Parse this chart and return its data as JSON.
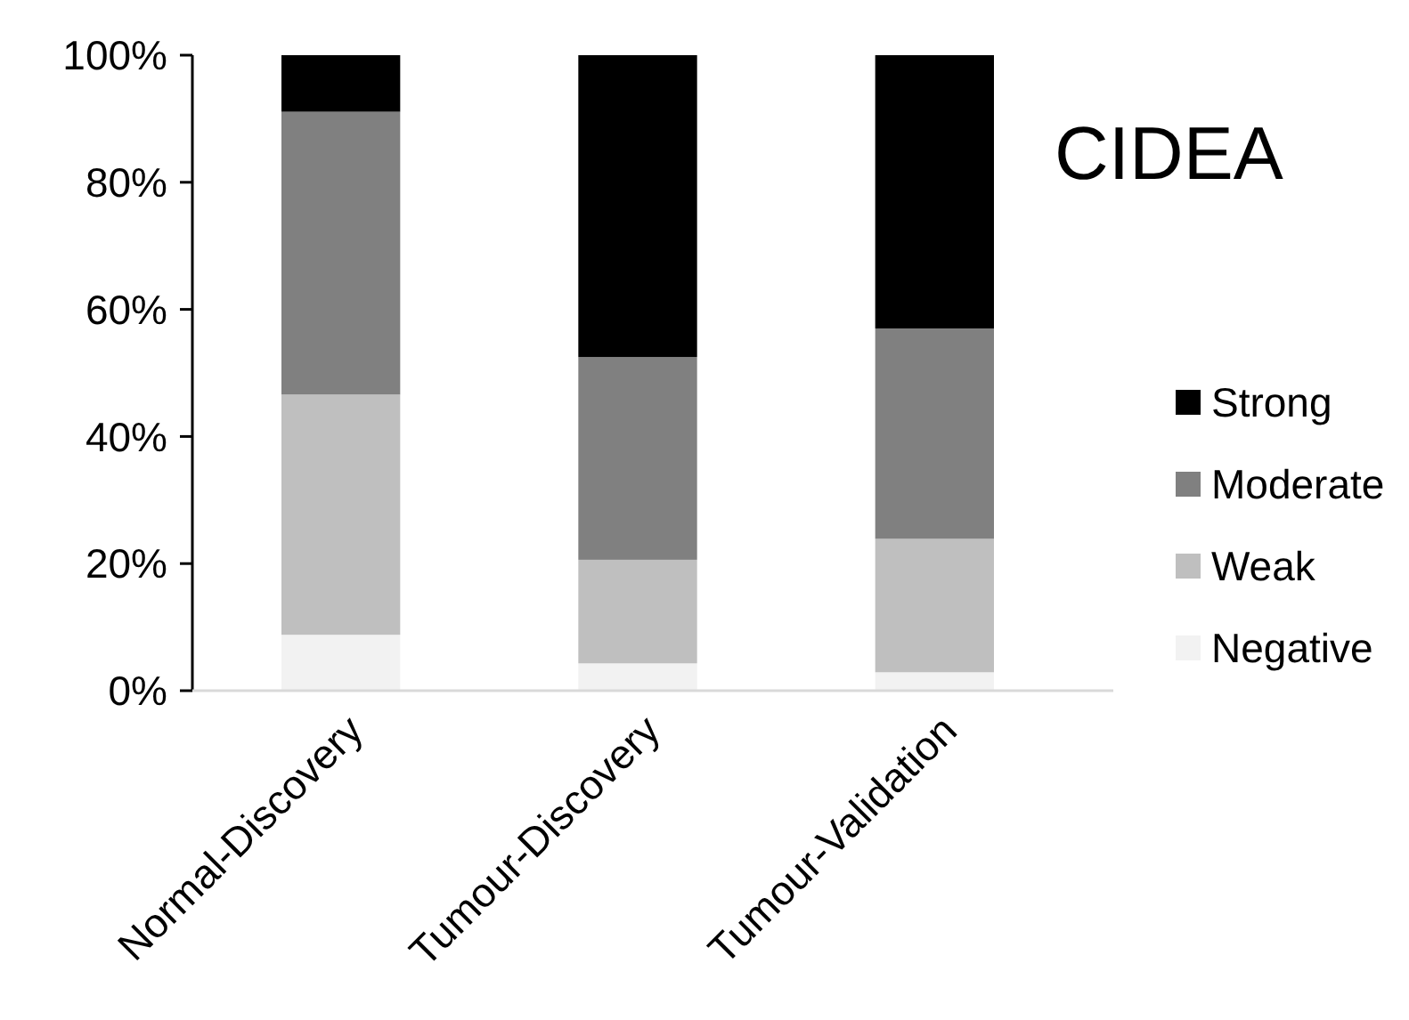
{
  "chart_data": {
    "type": "bar",
    "title": "CIDEA",
    "stacked": true,
    "legend": "right",
    "grid": false,
    "categories": [
      "Normal-Discovery",
      "Tumour-Discovery",
      "Tumour-Validation"
    ],
    "ylim": [
      0,
      100
    ],
    "yticks": [
      {
        "value": 0,
        "label": "0%"
      },
      {
        "value": 20,
        "label": "20%"
      },
      {
        "value": 40,
        "label": "40%"
      },
      {
        "value": 60,
        "label": "60%"
      },
      {
        "value": 80,
        "label": "80%"
      },
      {
        "value": 100,
        "label": "100%"
      }
    ],
    "series": [
      {
        "name": "Negative",
        "color": "#f2f2f2",
        "values": [
          8.8,
          4.3,
          2.9
        ]
      },
      {
        "name": "Weak",
        "color": "#bfbfbf",
        "values": [
          37.8,
          16.3,
          21
        ]
      },
      {
        "name": "Moderate",
        "color": "#808080",
        "values": [
          44.5,
          31.9,
          33.1
        ]
      },
      {
        "name": "Strong",
        "color": "#000000",
        "values": [
          8.9,
          47.5,
          43
        ]
      }
    ]
  }
}
